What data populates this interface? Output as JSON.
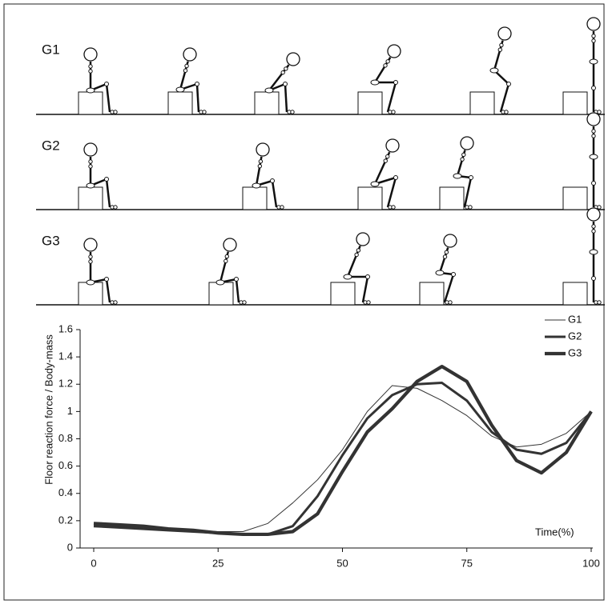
{
  "panel_labels": [
    "G1",
    "G2",
    "G3"
  ],
  "chart_data": {
    "type": "line",
    "ylabel": "Floor reaction force / Body-mass",
    "xlabel": "Time(%)",
    "x": [
      0,
      5,
      10,
      15,
      20,
      25,
      30,
      35,
      40,
      45,
      50,
      55,
      60,
      65,
      70,
      75,
      80,
      85,
      90,
      95,
      100
    ],
    "series": [
      {
        "name": "G1",
        "color": "#333333",
        "values": [
          0.17,
          0.16,
          0.15,
          0.14,
          0.13,
          0.12,
          0.12,
          0.18,
          0.33,
          0.5,
          0.72,
          1.0,
          1.19,
          1.17,
          1.08,
          0.97,
          0.82,
          0.74,
          0.76,
          0.84,
          1.0
        ]
      },
      {
        "name": "G2",
        "color": "#333333",
        "values": [
          0.16,
          0.15,
          0.14,
          0.13,
          0.12,
          0.11,
          0.1,
          0.1,
          0.16,
          0.38,
          0.68,
          0.95,
          1.12,
          1.2,
          1.21,
          1.08,
          0.85,
          0.72,
          0.69,
          0.77,
          1.0
        ]
      },
      {
        "name": "G3",
        "color": "#333333",
        "values": [
          0.18,
          0.17,
          0.16,
          0.14,
          0.13,
          0.11,
          0.1,
          0.1,
          0.12,
          0.25,
          0.56,
          0.85,
          1.02,
          1.22,
          1.33,
          1.22,
          0.9,
          0.64,
          0.55,
          0.7,
          1.0
        ]
      }
    ],
    "xlim": [
      0,
      100
    ],
    "ylim": [
      0,
      1.6
    ],
    "xticks": [
      0,
      25,
      50,
      75,
      100
    ],
    "yticks": [
      0,
      0.2,
      0.4,
      0.6,
      0.8,
      1,
      1.2,
      1.4,
      1.6
    ],
    "legend": "upper right"
  }
}
